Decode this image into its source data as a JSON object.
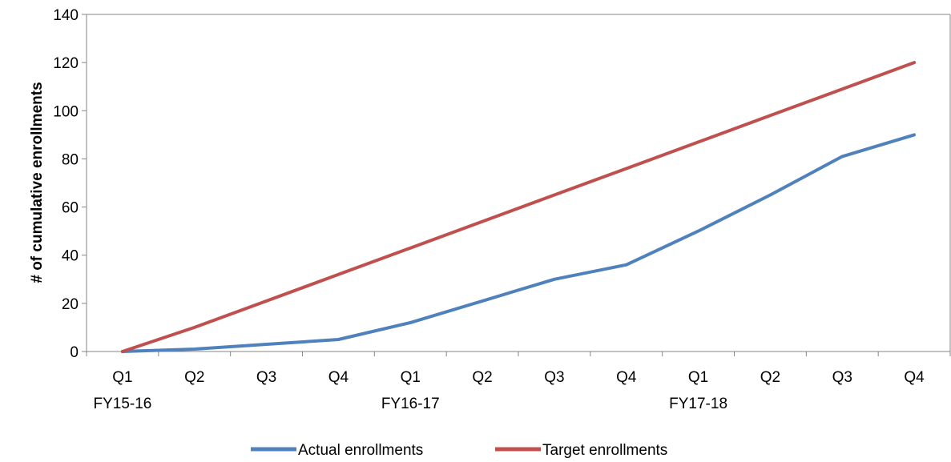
{
  "chart_data": {
    "type": "line",
    "ylabel": "# of cumulative enrollments",
    "xlabel": "",
    "ylim": [
      0,
      140
    ],
    "yticks": [
      0,
      20,
      40,
      60,
      80,
      100,
      120,
      140
    ],
    "categories": [
      "Q1",
      "Q2",
      "Q3",
      "Q4",
      "Q1",
      "Q2",
      "Q3",
      "Q4",
      "Q1",
      "Q2",
      "Q3",
      "Q4"
    ],
    "fiscal_year_labels": [
      {
        "label": "FY15-16",
        "category_index": 0
      },
      {
        "label": "FY16-17",
        "category_index": 4
      },
      {
        "label": "FY17-18",
        "category_index": 8
      }
    ],
    "series": [
      {
        "name": "Actual enrollments",
        "color": "#4f81bd",
        "values": [
          0,
          1,
          3,
          5,
          12,
          21,
          30,
          36,
          50,
          65,
          81,
          90
        ]
      },
      {
        "name": "Target enrollments",
        "color": "#c0504d",
        "values": [
          0,
          10,
          21,
          32,
          43,
          54,
          65,
          76,
          87,
          98,
          109,
          120
        ]
      }
    ],
    "grid": false,
    "legend": "bottom"
  }
}
